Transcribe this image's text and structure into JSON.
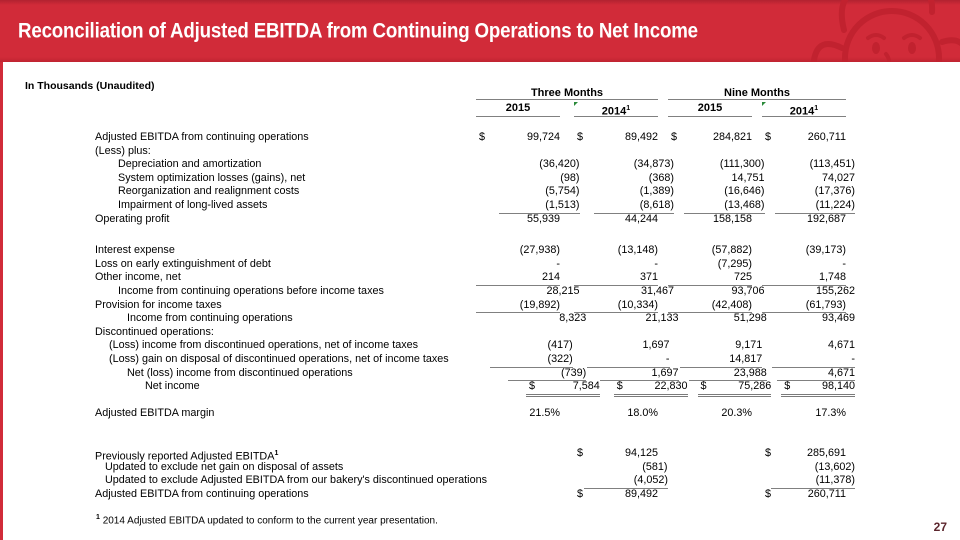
{
  "slide": {
    "title": "Reconciliation of Adjusted EBITDA from Continuing Operations to Net Income",
    "subtitle": "In Thousands (Unaudited)",
    "page_number": "27",
    "footnote_sup": "1",
    "footnote": "2014 Adjusted EBITDA updated to conform to the current year presentation.",
    "logo": "wendys-girl-watermark"
  },
  "colors": {
    "brand_red": "#d12b39",
    "logo_dark_red": "#c1222f",
    "rule_gray": "#808080",
    "page_number_red": "#5c262d",
    "marker_green": "#2a8a3a"
  },
  "table": {
    "currency_symbol": "$",
    "group_headers": [
      {
        "label": "Three Months"
      },
      {
        "label": "Nine Months"
      }
    ],
    "year_headers": [
      {
        "label": "2015",
        "sup": ""
      },
      {
        "label": "2014",
        "sup": "1"
      },
      {
        "label": "2015",
        "sup": ""
      },
      {
        "label": "2014",
        "sup": "1"
      }
    ],
    "rows": [
      {
        "label": "Adjusted EBITDA from continuing operations",
        "ind": 0,
        "cells": [
          "99,724",
          "89,492",
          "284,821",
          "260,711"
        ],
        "dollar": [
          1,
          1,
          1,
          1
        ]
      },
      {
        "label": "(Less) plus:",
        "ind": 0,
        "cells": [
          "",
          "",
          "",
          ""
        ]
      },
      {
        "label": "Depreciation and amortization",
        "ind": 23,
        "cells": [
          "(36,420)",
          "(34,873)",
          "(111,300)",
          "(113,451)"
        ]
      },
      {
        "label": "System optimization losses (gains), net",
        "ind": 23,
        "cells": [
          "(98)",
          "(368)",
          "14,751",
          "74,027"
        ]
      },
      {
        "label": "Reorganization and realignment costs",
        "ind": 23,
        "cells": [
          "(5,754)",
          "(1,389)",
          "(16,646)",
          "(17,376)"
        ]
      },
      {
        "label": "Impairment of long-lived assets",
        "ind": 23,
        "cells": [
          "(1,513)",
          "(8,618)",
          "(13,468)",
          "(11,224)"
        ],
        "ul": [
          1,
          1,
          1,
          1
        ]
      },
      {
        "label": "Operating profit",
        "ind": 0,
        "cells": [
          "55,939",
          "44,244",
          "158,158",
          "192,687"
        ]
      },
      {
        "spacer": 18
      },
      {
        "label": "Interest expense",
        "ind": 0,
        "cells": [
          "(27,938)",
          "(13,148)",
          "(57,882)",
          "(39,173)"
        ]
      },
      {
        "label": "Loss on early extinguishment of debt",
        "ind": 0,
        "cells": [
          "-",
          "-",
          "(7,295)",
          "-"
        ]
      },
      {
        "label": "Other income, net",
        "ind": 0,
        "cells": [
          "214",
          "371",
          "725",
          "1,748"
        ],
        "ul": [
          1,
          1,
          1,
          1
        ]
      },
      {
        "label": "Income from continuing operations before income taxes",
        "ind": 23,
        "cells": [
          "28,215",
          "31,467",
          "93,706",
          "155,262"
        ]
      },
      {
        "label": "Provision for income taxes",
        "ind": 0,
        "cells": [
          "(19,892)",
          "(10,334)",
          "(42,408)",
          "(61,793)"
        ],
        "ul": [
          1,
          1,
          1,
          1
        ]
      },
      {
        "label": "Income from continuing operations",
        "ind": 32,
        "cells": [
          "8,323",
          "21,133",
          "51,298",
          "93,469"
        ]
      },
      {
        "label": "Discontinued operations:",
        "ind": 0,
        "cells": [
          "",
          "",
          "",
          ""
        ]
      },
      {
        "label": "(Loss) income from discontinued operations, net of income taxes",
        "ind": 14,
        "cells": [
          "(417)",
          "1,697",
          "9,171",
          "4,671"
        ]
      },
      {
        "label": "(Loss) gain on disposal of discontinued operations, net of income taxes",
        "ind": 14,
        "cells": [
          "(322)",
          "-",
          "14,817",
          "-"
        ],
        "ul": [
          1,
          1,
          1,
          1
        ]
      },
      {
        "label": "Net (loss) income from discontinued operations",
        "ind": 32,
        "cells": [
          "(739)",
          "1,697",
          "23,988",
          "4,671"
        ],
        "ul": [
          1,
          1,
          1,
          1
        ]
      },
      {
        "label": "Net income",
        "ind": 50,
        "cells": [
          "7,584",
          "22,830",
          "75,286",
          "98,140"
        ],
        "dollar": [
          1,
          1,
          1,
          1
        ],
        "dul": [
          1,
          1,
          1,
          1
        ]
      },
      {
        "spacer": 13
      },
      {
        "label": "Adjusted EBITDA margin",
        "ind": 0,
        "cells": [
          "21.5%",
          "18.0%",
          "20.3%",
          "17.3%"
        ]
      },
      {
        "spacer": 27
      },
      {
        "label": "Previously reported Adjusted EBITDA",
        "sup": "1",
        "ind": 0,
        "cells": [
          "",
          "94,125",
          "",
          "285,691"
        ],
        "dollar": [
          0,
          1,
          0,
          1
        ]
      },
      {
        "label": "Updated to exclude net gain on disposal of assets",
        "ind": 10,
        "cells": [
          "",
          "(581)",
          "",
          "(13,602)"
        ]
      },
      {
        "label": "Updated to exclude Adjusted EBITDA from our bakery's discontinued operations",
        "ind": 10,
        "cells": [
          "",
          "(4,052)",
          "",
          "(11,378)"
        ],
        "ul": [
          0,
          1,
          0,
          1
        ]
      },
      {
        "label": "Adjusted EBITDA from continuing operations",
        "ind": 0,
        "cells": [
          "",
          "89,492",
          "",
          "260,711"
        ],
        "dollar": [
          0,
          1,
          0,
          1
        ]
      }
    ]
  }
}
